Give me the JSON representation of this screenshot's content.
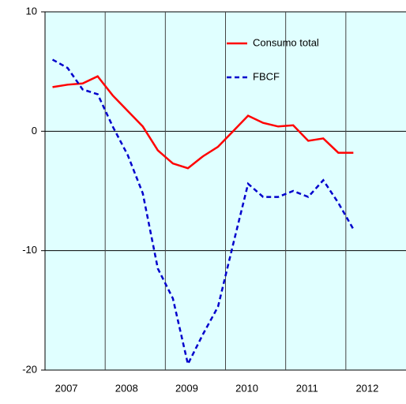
{
  "chart_data": {
    "type": "line",
    "x": [
      2007.125,
      2007.375,
      2007.625,
      2007.875,
      2008.125,
      2008.375,
      2008.625,
      2008.875,
      2009.125,
      2009.375,
      2009.625,
      2009.875,
      2010.125,
      2010.375,
      2010.625,
      2010.875,
      2011.125,
      2011.375,
      2011.625,
      2011.875,
      2012.125
    ],
    "series": [
      {
        "name": "Consumo total",
        "color": "#ff0000",
        "dash": false,
        "values": [
          3.7,
          3.9,
          4.0,
          4.6,
          3.0,
          1.7,
          0.4,
          -1.6,
          -2.7,
          -3.1,
          -2.1,
          -1.3,
          0.0,
          1.3,
          0.7,
          0.4,
          0.5,
          -0.8,
          -0.6,
          -1.8,
          -1.8
        ]
      },
      {
        "name": "FBCF",
        "color": "#0000cc",
        "dash": true,
        "values": [
          6.0,
          5.3,
          3.5,
          3.1,
          0.4,
          -2.0,
          -5.2,
          -11.5,
          -14.0,
          -19.5,
          -17.0,
          -14.7,
          -9.5,
          -4.4,
          -5.5,
          -5.5,
          -5.0,
          -5.5,
          -4.1,
          -6.0,
          -8.2
        ]
      }
    ],
    "xlim": [
      2007,
      2013
    ],
    "xticks": [
      {
        "value": 2007.5,
        "label": "2007"
      },
      {
        "value": 2008.5,
        "label": "2008"
      },
      {
        "value": 2009.5,
        "label": "2009"
      },
      {
        "value": 2010.5,
        "label": "2010"
      },
      {
        "value": 2011.5,
        "label": "2011"
      },
      {
        "value": 2012.5,
        "label": "2012"
      }
    ],
    "ylim": [
      -20,
      10
    ],
    "yticks": [
      -20,
      -10,
      0,
      10
    ],
    "grid": true,
    "background": "#e0ffff"
  }
}
